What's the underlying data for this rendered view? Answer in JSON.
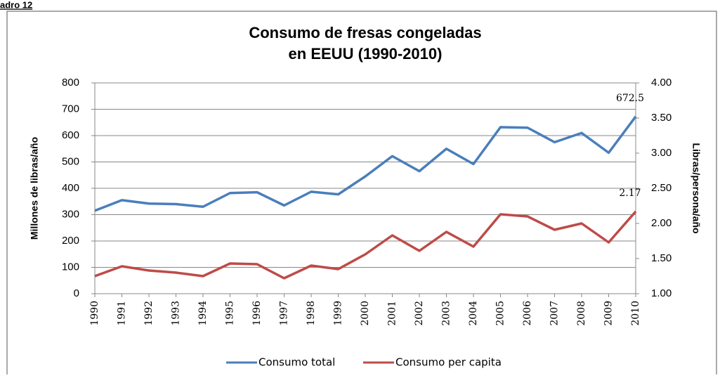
{
  "caption": "adro 12",
  "chart_data": {
    "type": "line",
    "title": [
      "Consumo de fresas congeladas",
      "en EEUU (1990-2010)"
    ],
    "y_label": "Millones de libras/año",
    "y2_label": "Libras/persona/año",
    "categories": [
      "1990",
      "1991",
      "1992",
      "1993",
      "1994",
      "1995",
      "1996",
      "1997",
      "1998",
      "1999",
      "2000",
      "2001",
      "2002",
      "2003",
      "2004",
      "2005",
      "2006",
      "2007",
      "2008",
      "2009",
      "2010"
    ],
    "series": [
      {
        "name": "Consumo total",
        "color": "#4a7ebb",
        "values": [
          315,
          355,
          342,
          340,
          330,
          382,
          385,
          335,
          387,
          377,
          445,
          522,
          465,
          550,
          492,
          632,
          630,
          575,
          610,
          535,
          672.5
        ]
      },
      {
        "name": "Consumo per capita",
        "color": "#be4b48",
        "axis": "y2",
        "values": [
          1.25,
          1.39,
          1.33,
          1.3,
          1.25,
          1.43,
          1.42,
          1.22,
          1.4,
          1.35,
          1.56,
          1.83,
          1.61,
          1.88,
          1.67,
          2.13,
          2.1,
          1.91,
          2.0,
          1.73,
          2.17
        ]
      }
    ],
    "labeled_points": [
      20
    ],
    "ylim": [
      0,
      800
    ],
    "yticks": [
      0,
      100,
      200,
      300,
      400,
      500,
      600,
      700,
      800
    ],
    "y2lim": [
      1,
      4
    ],
    "y2ticks": [
      {
        "value": 1,
        "label": "1.00"
      },
      {
        "value": 1.5,
        "label": "1.50"
      },
      {
        "value": 2,
        "label": "2.00"
      },
      {
        "value": 2.5,
        "label": "2.50"
      },
      {
        "value": 3,
        "label": "3.00"
      },
      {
        "value": 3.5,
        "label": "3.50"
      },
      {
        "value": 4,
        "label": "4.00"
      }
    ],
    "grid": true,
    "legend": "bottom"
  }
}
